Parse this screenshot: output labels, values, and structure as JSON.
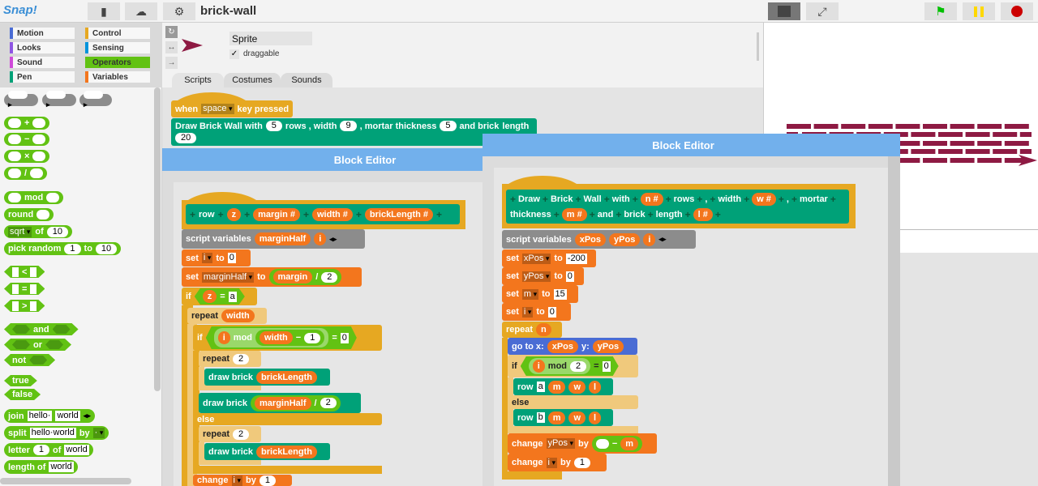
{
  "app": {
    "logo": "Snap!",
    "project_title": "brick-wall"
  },
  "topbar": {
    "icons": [
      "file-icon",
      "cloud-icon",
      "gear-icon"
    ],
    "stage_icons": [
      "normal-stage-icon",
      "fullscreen-icon"
    ],
    "controls": {
      "flag_color": "#00c000",
      "pause_color": "#ffd800",
      "stop_color": "#cc0000"
    }
  },
  "palette": {
    "categories": [
      {
        "label": "Motion",
        "color": "#4a6cd4"
      },
      {
        "label": "Control",
        "color": "#e6a822"
      },
      {
        "label": "Looks",
        "color": "#8f56e3"
      },
      {
        "label": "Sensing",
        "color": "#0494dc"
      },
      {
        "label": "Sound",
        "color": "#cf4ad9"
      },
      {
        "label": "Operators",
        "color": "#62c213",
        "selected": true
      },
      {
        "label": "Pen",
        "color": "#00a178"
      },
      {
        "label": "Variables",
        "color": "#f3761d"
      }
    ]
  },
  "sprite": {
    "name": "Sprite",
    "draggable_label": "draggable",
    "draggable": true,
    "color": "#8e1a43"
  },
  "tabs": [
    {
      "label": "Scripts",
      "active": true
    },
    {
      "label": "Costumes"
    },
    {
      "label": "Sounds"
    }
  ],
  "editors": [
    {
      "title": "Block Editor"
    },
    {
      "title": "Block Editor"
    }
  ],
  "stage": {
    "brick_color": "#8e1a43"
  },
  "blocks": {
    "pal_ring_cmd": {
      "tokens": [
        {
          "E": ""
        },
        {
          "R": "▸"
        }
      ]
    },
    "pal_ring_rep": {
      "tokens": [
        {
          "E": ""
        },
        {
          "R": "▸"
        }
      ]
    },
    "pal_ring_pred": {
      "tokens": [
        {
          "E": ""
        },
        {
          "R": "▸"
        }
      ]
    },
    "pal_plus": {
      "tokens": [
        {
          "e": ""
        },
        {
          "t": "+"
        },
        {
          "e": ""
        }
      ]
    },
    "pal_minus": {
      "tokens": [
        {
          "e": ""
        },
        {
          "t": "−"
        },
        {
          "e": ""
        }
      ]
    },
    "pal_times": {
      "tokens": [
        {
          "e": ""
        },
        {
          "t": "×"
        },
        {
          "e": ""
        }
      ]
    },
    "pal_div": {
      "tokens": [
        {
          "e": ""
        },
        {
          "t": "/"
        },
        {
          "e": ""
        }
      ]
    },
    "pal_mod": {
      "tokens": [
        {
          "e": ""
        },
        {
          "t": "mod"
        },
        {
          "e": ""
        }
      ]
    },
    "pal_round": {
      "tokens": [
        {
          "t": "round"
        },
        {
          "e": ""
        }
      ]
    },
    "pal_sqrt": {
      "tokens": [
        {
          "d": "sqrt"
        },
        {
          "t": "of"
        },
        {
          "n": "10"
        }
      ]
    },
    "pal_random": {
      "tokens": [
        {
          "t": "pick random"
        },
        {
          "n": "1"
        },
        {
          "t": "to"
        },
        {
          "n": "10"
        }
      ]
    },
    "pal_lt": {
      "tokens": [
        {
          "q": ""
        },
        {
          "t": "<"
        },
        {
          "q": ""
        }
      ]
    },
    "pal_eq": {
      "tokens": [
        {
          "q": ""
        },
        {
          "t": "="
        },
        {
          "q": ""
        }
      ]
    },
    "pal_gt": {
      "tokens": [
        {
          "q": ""
        },
        {
          "t": ">"
        },
        {
          "q": ""
        }
      ]
    },
    "pal_and": {
      "tokens": [
        {
          "h": ""
        },
        {
          "t": "and"
        },
        {
          "h": ""
        }
      ]
    },
    "pal_or": {
      "tokens": [
        {
          "h": ""
        },
        {
          "t": "or"
        },
        {
          "h": ""
        }
      ]
    },
    "pal_not": {
      "tokens": [
        {
          "t": "not"
        },
        {
          "h": ""
        }
      ]
    },
    "pal_true": {
      "tokens": [
        {
          "t": "true"
        }
      ]
    },
    "pal_false": {
      "tokens": [
        {
          "t": "false"
        }
      ]
    },
    "pal_join": {
      "tokens": [
        {
          "t": "join"
        },
        {
          "s": "hello·"
        },
        {
          "s": "world"
        },
        {
          "A": "◂▸"
        }
      ]
    },
    "pal_split": {
      "tokens": [
        {
          "t": "split"
        },
        {
          "s": "hello·world"
        },
        {
          "t": "by"
        },
        {
          "d": "·"
        }
      ]
    },
    "pal_letter": {
      "tokens": [
        {
          "t": "letter"
        },
        {
          "n": "1"
        },
        {
          "t": "of"
        },
        {
          "s": "world"
        }
      ]
    },
    "pal_length": {
      "tokens": [
        {
          "t": "length of"
        },
        {
          "s": "world"
        }
      ]
    },
    "s_when": {
      "tokens": [
        {
          "t": "when"
        },
        {
          "d": "space"
        },
        {
          "t": "key pressed"
        }
      ]
    },
    "s_draw": {
      "tokens": [
        {
          "t": "Draw Brick Wall with"
        },
        {
          "n": "5"
        },
        {
          "t": "rows , width"
        },
        {
          "n": "9"
        },
        {
          "t": ", mortar thickness"
        },
        {
          "n": "5"
        },
        {
          "t": "and brick"
        },
        {
          "t": "length"
        },
        {
          "n": "20"
        }
      ]
    },
    "e1_proto": {
      "tokens": [
        {
          "x": "+"
        },
        {
          "t": "row"
        },
        {
          "x": "+"
        },
        {
          "v": "z"
        },
        {
          "x": "+"
        },
        {
          "v": "margin #"
        },
        {
          "x": "+"
        },
        {
          "v": "width #"
        },
        {
          "x": "+"
        },
        {
          "v": "brickLength #"
        },
        {
          "x": "+"
        }
      ]
    },
    "e1_vars": {
      "tokens": [
        {
          "t": "script variables"
        },
        {
          "v": "marginHalf"
        },
        {
          "v": "i"
        },
        {
          "A": "◂▸"
        }
      ]
    },
    "e1_set_i": {
      "tokens": [
        {
          "t": "set"
        },
        {
          "d": "i"
        },
        {
          "t": "to"
        },
        {
          "s": "0"
        }
      ]
    },
    "e1_set_mh": {
      "tokens": [
        {
          "t": "set"
        },
        {
          "d": "marginHalf"
        },
        {
          "t": "to"
        },
        {
          "r": [
            {
              "v": "margin"
            },
            {
              "t": "/"
            },
            {
              "n": "2"
            }
          ]
        }
      ]
    },
    "e1_if1": {
      "tokens": [
        {
          "t": "if"
        },
        {
          "b": [
            {
              "v": "z"
            },
            {
              "t": "="
            },
            {
              "s": "a"
            }
          ]
        }
      ]
    },
    "e1_rep_w": {
      "tokens": [
        {
          "t": "repeat"
        },
        {
          "v": "width"
        }
      ]
    },
    "e1_if2": {
      "tokens": [
        {
          "t": "if"
        },
        {
          "b": [
            {
              "rz": [
                {
                  "v": "i"
                },
                {
                  "t": "mod"
                },
                {
                  "r": [
                    {
                      "v": "width"
                    },
                    {
                      "t": "−"
                    },
                    {
                      "n": "1"
                    }
                  ]
                }
              ]
            },
            {
              "t": "="
            },
            {
              "s": "0"
            }
          ]
        }
      ]
    },
    "e1_rep2a": {
      "tokens": [
        {
          "t": "repeat"
        },
        {
          "n": "2"
        }
      ]
    },
    "e1_draw1": {
      "tokens": [
        {
          "t": "draw brick"
        },
        {
          "v": "brickLength"
        }
      ]
    },
    "e1_draw2": {
      "tokens": [
        {
          "t": "draw brick"
        },
        {
          "r": [
            {
              "v": "marginHalf"
            },
            {
              "t": "/"
            },
            {
              "n": "2"
            }
          ]
        }
      ]
    },
    "e1_else": {
      "tokens": [
        {
          "t": "else"
        }
      ]
    },
    "e1_rep2b": {
      "tokens": [
        {
          "t": "repeat"
        },
        {
          "n": "2"
        }
      ]
    },
    "e1_draw3": {
      "tokens": [
        {
          "t": "draw brick"
        },
        {
          "v": "brickLength"
        }
      ]
    },
    "e1_change": {
      "tokens": [
        {
          "t": "change"
        },
        {
          "d": "i"
        },
        {
          "t": "by"
        },
        {
          "n": "1"
        }
      ]
    },
    "e2_proto": {
      "tokens": [
        {
          "x": "+"
        },
        {
          "t": "Draw"
        },
        {
          "x": "+"
        },
        {
          "t": "Brick"
        },
        {
          "x": "+"
        },
        {
          "t": "Wall"
        },
        {
          "x": "+"
        },
        {
          "t": "with"
        },
        {
          "x": "+"
        },
        {
          "v": "n #"
        },
        {
          "x": "+"
        },
        {
          "t": "rows"
        },
        {
          "x": "+"
        },
        {
          "t": ","
        },
        {
          "x": "+"
        },
        {
          "t": "width"
        },
        {
          "x": "+"
        },
        {
          "v": "w #"
        },
        {
          "x": "+"
        },
        {
          "t": ","
        },
        {
          "x": "+"
        },
        {
          "t": "mortar"
        },
        {
          "x": "+"
        },
        {
          "t": "thickness"
        },
        {
          "x": "+"
        },
        {
          "v": "m #"
        },
        {
          "x": "+"
        },
        {
          "t": "and"
        },
        {
          "x": "+"
        },
        {
          "t": "brick"
        },
        {
          "x": "+"
        },
        {
          "t": "length"
        },
        {
          "x": "+"
        },
        {
          "v": "l #"
        },
        {
          "x": "+"
        }
      ]
    },
    "e2_vars": {
      "tokens": [
        {
          "t": "script variables"
        },
        {
          "v": "xPos"
        },
        {
          "v": "yPos"
        },
        {
          "v": "i"
        },
        {
          "A": "◂▸"
        }
      ]
    },
    "e2_set_x": {
      "tokens": [
        {
          "t": "set"
        },
        {
          "d": "xPos"
        },
        {
          "t": "to"
        },
        {
          "s": "-200"
        }
      ]
    },
    "e2_set_y": {
      "tokens": [
        {
          "t": "set"
        },
        {
          "d": "yPos"
        },
        {
          "t": "to"
        },
        {
          "s": "0"
        }
      ]
    },
    "e2_set_m": {
      "tokens": [
        {
          "t": "set"
        },
        {
          "d": "m"
        },
        {
          "t": "to"
        },
        {
          "s": "15"
        }
      ]
    },
    "e2_set_i": {
      "tokens": [
        {
          "t": "set"
        },
        {
          "d": "i"
        },
        {
          "t": "to"
        },
        {
          "s": "0"
        }
      ]
    },
    "e2_repeat": {
      "tokens": [
        {
          "t": "repeat"
        },
        {
          "v": "n"
        }
      ]
    },
    "e2_goto": {
      "tokens": [
        {
          "t": "go to x:"
        },
        {
          "v": "xPos"
        },
        {
          "t": "y:"
        },
        {
          "v": "yPos"
        }
      ]
    },
    "e2_if": {
      "tokens": [
        {
          "t": "if"
        },
        {
          "b": [
            {
              "rz": [
                {
                  "v": "i"
                },
                {
                  "t": "mod"
                },
                {
                  "n": "2"
                }
              ]
            },
            {
              "t": "="
            },
            {
              "s": "0"
            }
          ]
        }
      ]
    },
    "e2_row_a": {
      "tokens": [
        {
          "t": "row"
        },
        {
          "s": "a"
        },
        {
          "v": "m"
        },
        {
          "v": "w"
        },
        {
          "v": "l"
        }
      ]
    },
    "e2_else": {
      "tokens": [
        {
          "t": "else"
        }
      ]
    },
    "e2_row_b": {
      "tokens": [
        {
          "t": "row"
        },
        {
          "s": "b"
        },
        {
          "v": "m"
        },
        {
          "v": "w"
        },
        {
          "v": "l"
        }
      ]
    },
    "e2_change_y": {
      "tokens": [
        {
          "t": "change"
        },
        {
          "d": "yPos"
        },
        {
          "t": "by"
        },
        {
          "r": [
            {
              "e": ""
            },
            {
              "t": "−"
            },
            {
              "v": "m"
            }
          ]
        }
      ]
    },
    "e2_change_i": {
      "tokens": [
        {
          "t": "change"
        },
        {
          "d": "i"
        },
        {
          "t": "by"
        },
        {
          "n": "1"
        }
      ]
    }
  }
}
